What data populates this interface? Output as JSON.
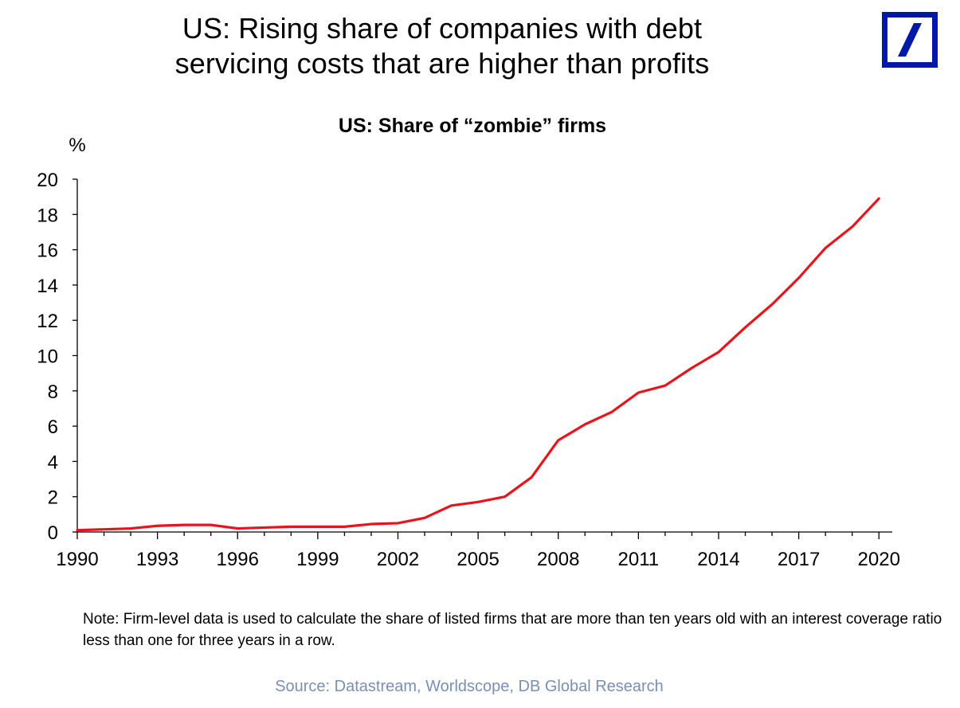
{
  "header": {
    "title_line1": "US: Rising share of companies with debt",
    "title_line2": "servicing costs that are higher than profits"
  },
  "logo": {
    "name": "deutsche-bank-logo-icon",
    "color": "#0018a8"
  },
  "chart_data": {
    "type": "line",
    "title": "US: Share of “zombie” firms",
    "ylabel": "%",
    "xlabel": "",
    "ylim": [
      0,
      20
    ],
    "xlim": [
      1990,
      2020.5
    ],
    "yticks": [
      0,
      2,
      4,
      6,
      8,
      10,
      12,
      14,
      16,
      18,
      20
    ],
    "xticks": [
      "1990",
      "1993",
      "1996",
      "1999",
      "2002",
      "2005",
      "2008",
      "2011",
      "2014",
      "2017",
      "2020"
    ],
    "grid": false,
    "legend": "none",
    "series": [
      {
        "color": "#e8141c",
        "x": [
          1990,
          1991,
          1992,
          1993,
          1994,
          1995,
          1996,
          1997,
          1998,
          1999,
          2000,
          2001,
          2002,
          2003,
          2004,
          2005,
          2006,
          2007,
          2008,
          2009,
          2010,
          2011,
          2012,
          2013,
          2014,
          2015,
          2016,
          2017,
          2018,
          2019,
          2020
        ],
        "values": [
          0.1,
          0.15,
          0.2,
          0.35,
          0.4,
          0.4,
          0.2,
          0.25,
          0.3,
          0.3,
          0.3,
          0.45,
          0.5,
          0.8,
          1.5,
          1.7,
          2.0,
          3.1,
          5.2,
          6.1,
          6.8,
          7.9,
          8.3,
          9.3,
          10.2,
          11.6,
          12.9,
          14.4,
          16.1,
          17.3,
          18.9
        ]
      }
    ]
  },
  "note": "Note: Firm-level data is used to calculate the share of listed firms that are more than ten years old with an interest coverage ratio less than one for three years in a row.",
  "source": "Source: Datastream, Worldscope, DB Global Research"
}
